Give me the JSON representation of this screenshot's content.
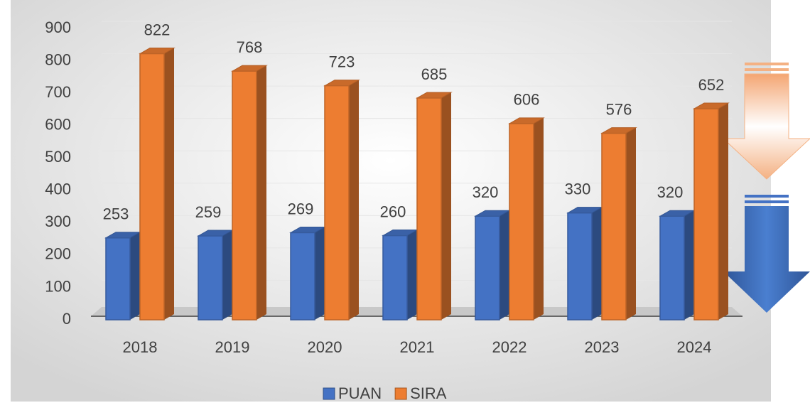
{
  "chart_data": {
    "type": "bar",
    "categories": [
      "2018",
      "2019",
      "2020",
      "2021",
      "2022",
      "2023",
      "2024"
    ],
    "series": [
      {
        "name": "PUAN",
        "color": "#4472c4",
        "values": [
          253,
          259,
          269,
          260,
          320,
          330,
          320
        ]
      },
      {
        "name": "SIRA",
        "color": "#ed7d31",
        "values": [
          822,
          768,
          723,
          685,
          606,
          576,
          652
        ]
      }
    ],
    "ylim": [
      0,
      900
    ],
    "yticks": [
      0,
      100,
      200,
      300,
      400,
      500,
      600,
      700,
      800,
      900
    ],
    "grid": true,
    "legend": "bottom"
  }
}
